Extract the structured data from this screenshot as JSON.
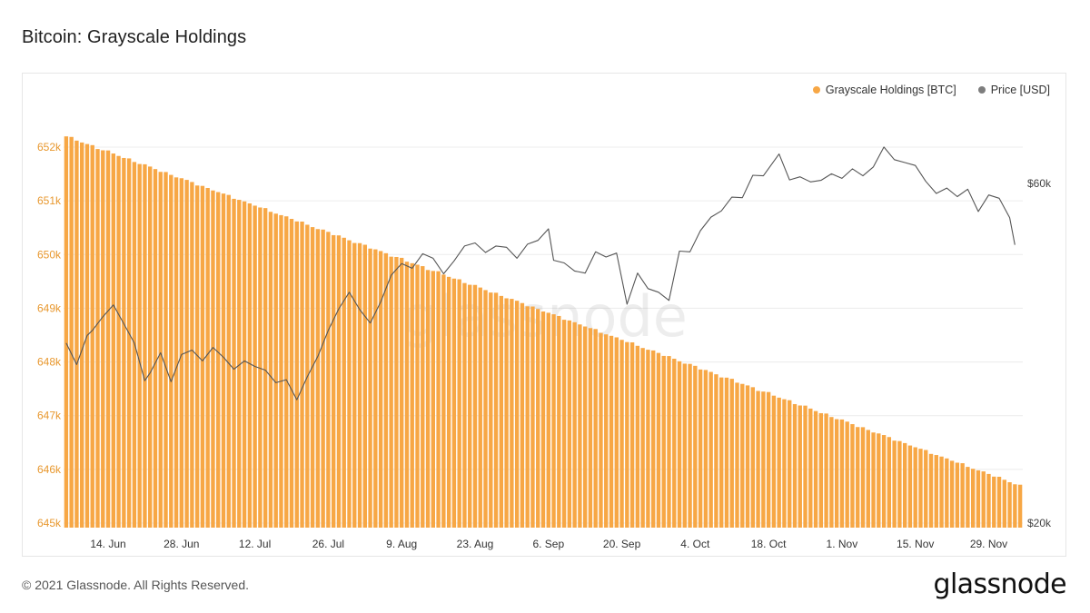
{
  "page": {
    "title": "Bitcoin: Grayscale Holdings",
    "footer": "© 2021 Glassnode. All Rights Reserved.",
    "brand": "glassnode",
    "watermark": "glassnode"
  },
  "legend": [
    {
      "label": "Grayscale Holdings [BTC]",
      "color": "#f7a745"
    },
    {
      "label": "Price [USD]",
      "color": "#7d7d7d"
    }
  ],
  "chart_data": {
    "type": "bar",
    "title": "Bitcoin: Grayscale Holdings",
    "x_tick_labels": [
      "14. Jun",
      "28. Jun",
      "12. Jul",
      "26. Jul",
      "9. Aug",
      "23. Aug",
      "6. Sep",
      "20. Sep",
      "4. Oct",
      "18. Oct",
      "1. Nov",
      "15. Nov",
      "29. Nov"
    ],
    "x_range": [
      "2021-06-06",
      "2021-12-05"
    ],
    "left_axis": {
      "ticks": [
        645000,
        646000,
        647000,
        648000,
        649000,
        650000,
        651000,
        652000
      ],
      "tick_labels": [
        "645k",
        "646k",
        "647k",
        "648k",
        "649k",
        "650k",
        "651k",
        "652k"
      ],
      "range": [
        645000,
        652300
      ],
      "color": "#e8982f"
    },
    "right_axis": {
      "ticks": [
        20000,
        60000
      ],
      "tick_labels": [
        "$20k",
        "$60k"
      ],
      "scale": "log",
      "range": [
        20000,
        69000
      ],
      "color": "#444444"
    },
    "series": [
      {
        "name": "Grayscale Holdings [BTC]",
        "type": "bar",
        "axis": "left",
        "color": "#f7a745",
        "start": "2021-06-06",
        "end": "2021-12-05",
        "start_value": 652200,
        "end_value": 645700,
        "shape": "slow daily decline"
      },
      {
        "name": "Price [USD]",
        "type": "line",
        "axis": "right",
        "color": "#7d7d7d",
        "points": [
          [
            "2021-06-06",
            35800
          ],
          [
            "2021-06-08",
            33400
          ],
          [
            "2021-06-10",
            36700
          ],
          [
            "2021-06-11",
            37300
          ],
          [
            "2021-06-13",
            39000
          ],
          [
            "2021-06-15",
            40500
          ],
          [
            "2021-06-17",
            38100
          ],
          [
            "2021-06-19",
            35800
          ],
          [
            "2021-06-21",
            31700
          ],
          [
            "2021-06-22",
            32500
          ],
          [
            "2021-06-24",
            34700
          ],
          [
            "2021-06-26",
            31600
          ],
          [
            "2021-06-28",
            34500
          ],
          [
            "2021-06-30",
            35000
          ],
          [
            "2021-07-02",
            33800
          ],
          [
            "2021-07-04",
            35300
          ],
          [
            "2021-07-06",
            34200
          ],
          [
            "2021-07-08",
            32900
          ],
          [
            "2021-07-10",
            33800
          ],
          [
            "2021-07-12",
            33200
          ],
          [
            "2021-07-14",
            32800
          ],
          [
            "2021-07-16",
            31500
          ],
          [
            "2021-07-18",
            31800
          ],
          [
            "2021-07-20",
            29800
          ],
          [
            "2021-07-22",
            32100
          ],
          [
            "2021-07-24",
            34300
          ],
          [
            "2021-07-26",
            37300
          ],
          [
            "2021-07-28",
            40000
          ],
          [
            "2021-07-30",
            42200
          ],
          [
            "2021-08-01",
            39900
          ],
          [
            "2021-08-03",
            38200
          ],
          [
            "2021-08-05",
            40900
          ],
          [
            "2021-08-07",
            44600
          ],
          [
            "2021-08-09",
            46300
          ],
          [
            "2021-08-11",
            45600
          ],
          [
            "2021-08-13",
            47800
          ],
          [
            "2021-08-15",
            47100
          ],
          [
            "2021-08-17",
            44800
          ],
          [
            "2021-08-19",
            46700
          ],
          [
            "2021-08-21",
            49000
          ],
          [
            "2021-08-23",
            49500
          ],
          [
            "2021-08-25",
            48000
          ],
          [
            "2021-08-27",
            49000
          ],
          [
            "2021-08-29",
            48800
          ],
          [
            "2021-08-31",
            47100
          ],
          [
            "2021-09-02",
            49300
          ],
          [
            "2021-09-04",
            49900
          ],
          [
            "2021-09-06",
            51800
          ],
          [
            "2021-09-07",
            46800
          ],
          [
            "2021-09-09",
            46400
          ],
          [
            "2021-09-11",
            45200
          ],
          [
            "2021-09-13",
            44900
          ],
          [
            "2021-09-15",
            48100
          ],
          [
            "2021-09-17",
            47300
          ],
          [
            "2021-09-19",
            47900
          ],
          [
            "2021-09-21",
            40600
          ],
          [
            "2021-09-23",
            44900
          ],
          [
            "2021-09-25",
            42700
          ],
          [
            "2021-09-27",
            42200
          ],
          [
            "2021-09-29",
            41100
          ],
          [
            "2021-10-01",
            48200
          ],
          [
            "2021-10-03",
            48100
          ],
          [
            "2021-10-05",
            51500
          ],
          [
            "2021-10-07",
            53800
          ],
          [
            "2021-10-09",
            54900
          ],
          [
            "2021-10-11",
            57400
          ],
          [
            "2021-10-13",
            57300
          ],
          [
            "2021-10-15",
            61600
          ],
          [
            "2021-10-17",
            61500
          ],
          [
            "2021-10-20",
            66000
          ],
          [
            "2021-10-22",
            60700
          ],
          [
            "2021-10-24",
            61300
          ],
          [
            "2021-10-26",
            60300
          ],
          [
            "2021-10-28",
            60600
          ],
          [
            "2021-10-30",
            61900
          ],
          [
            "2021-11-01",
            61000
          ],
          [
            "2021-11-03",
            62900
          ],
          [
            "2021-11-05",
            61500
          ],
          [
            "2021-11-07",
            63300
          ],
          [
            "2021-11-09",
            67500
          ],
          [
            "2021-11-11",
            64800
          ],
          [
            "2021-11-13",
            64200
          ],
          [
            "2021-11-15",
            63600
          ],
          [
            "2021-11-17",
            60400
          ],
          [
            "2021-11-19",
            58100
          ],
          [
            "2021-11-21",
            59100
          ],
          [
            "2021-11-23",
            57500
          ],
          [
            "2021-11-25",
            58900
          ],
          [
            "2021-11-27",
            54800
          ],
          [
            "2021-11-29",
            57800
          ],
          [
            "2021-12-01",
            57200
          ],
          [
            "2021-12-03",
            53700
          ],
          [
            "2021-12-04",
            49200
          ]
        ]
      }
    ],
    "grid": "horizontal",
    "legend_position": "top-right"
  }
}
